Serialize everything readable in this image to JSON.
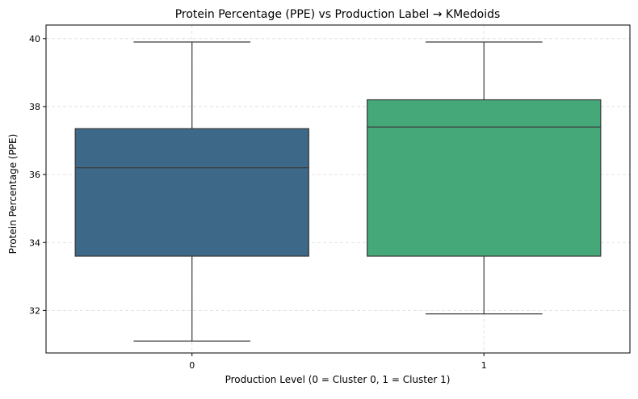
{
  "chart_data": {
    "type": "box",
    "title": "Protein Percentage (PPE) vs Production Label → KMedoids",
    "xlabel": "Production Level (0 = Cluster 0, 1 = Cluster 1)",
    "ylabel": "Protein Percentage (PPE)",
    "categories": [
      "0",
      "1"
    ],
    "ylim": [
      30.75,
      40.4
    ],
    "yticks": [
      32,
      34,
      36,
      38,
      40
    ],
    "grid": true,
    "boxes": [
      {
        "category": "0",
        "whisker_low": 31.1,
        "q1": 33.6,
        "median": 36.2,
        "q3": 37.35,
        "whisker_high": 39.9,
        "color": "#3e6887"
      },
      {
        "category": "1",
        "whisker_low": 31.9,
        "q1": 33.6,
        "median": 37.4,
        "q3": 38.2,
        "whisker_high": 39.9,
        "color": "#45a878"
      }
    ]
  }
}
